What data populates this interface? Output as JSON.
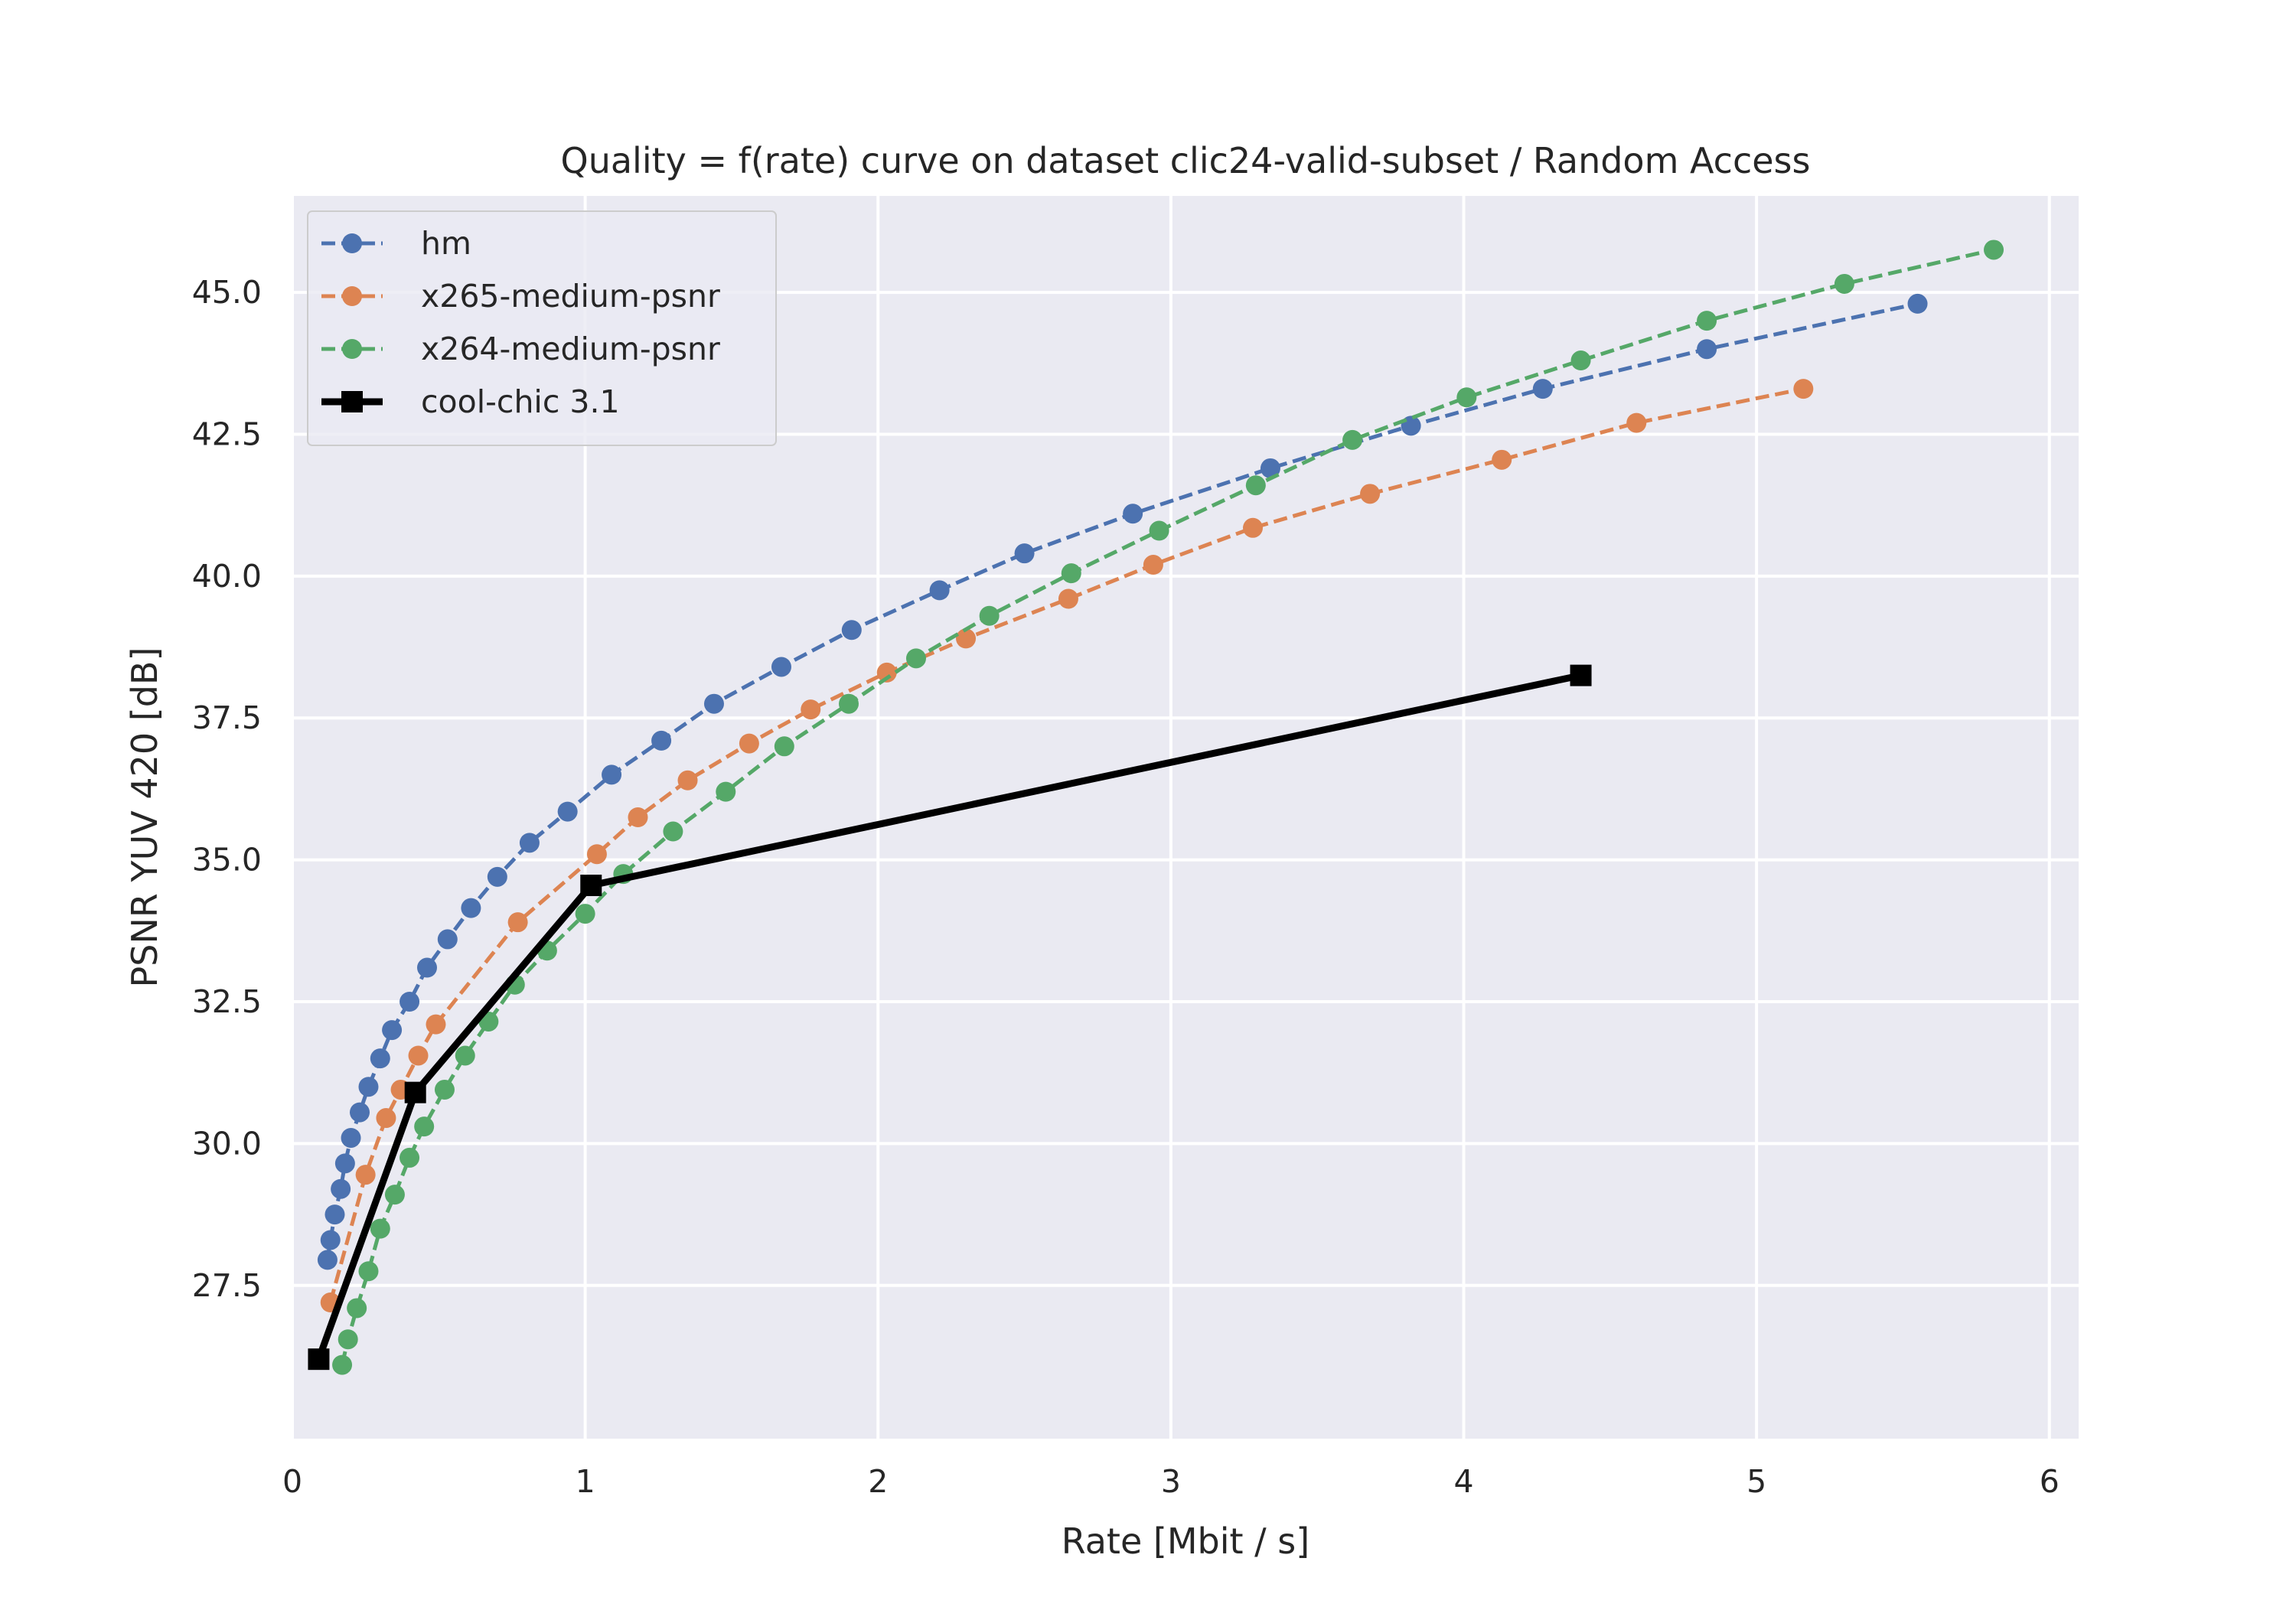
{
  "chart_data": {
    "type": "line",
    "title": "Quality = f(rate) curve on dataset clic24-valid-subset / Random Access",
    "xlabel": "Rate [Mbit / s]",
    "ylabel": "PSNR YUV 420 [dB]",
    "xlim": [
      0,
      6.1
    ],
    "ylim": [
      24.8,
      46.7
    ],
    "xticks": [
      0,
      1,
      2,
      3,
      4,
      5,
      6
    ],
    "xtick_labels": [
      "0",
      "1",
      "2",
      "3",
      "4",
      "5",
      "6"
    ],
    "yticks": [
      27.5,
      30.0,
      32.5,
      35.0,
      37.5,
      40.0,
      42.5,
      45.0
    ],
    "ytick_labels": [
      "27.5",
      "30.0",
      "32.5",
      "35.0",
      "37.5",
      "40.0",
      "42.5",
      "45.0"
    ],
    "grid": true,
    "legend_position": "top-left",
    "colors": {
      "background": "#eaeaf2",
      "grid": "#ffffff"
    },
    "series": [
      {
        "name": "hm",
        "color": "#4c72b0",
        "line_style": "dashed",
        "marker": "circle",
        "x": [
          0.12,
          0.13,
          0.145,
          0.165,
          0.18,
          0.2,
          0.23,
          0.26,
          0.3,
          0.34,
          0.4,
          0.46,
          0.53,
          0.61,
          0.7,
          0.81,
          0.94,
          1.09,
          1.26,
          1.44,
          1.67,
          1.91,
          2.21,
          2.5,
          2.87,
          3.34,
          3.82,
          4.27,
          4.83,
          5.55
        ],
        "y": [
          27.95,
          28.3,
          28.75,
          29.2,
          29.65,
          30.1,
          30.55,
          31.0,
          31.5,
          32.0,
          32.5,
          33.1,
          33.6,
          34.15,
          34.7,
          35.3,
          35.85,
          36.5,
          37.1,
          37.75,
          38.4,
          39.05,
          39.75,
          40.4,
          41.1,
          41.9,
          42.65,
          43.3,
          44.0,
          44.8
        ]
      },
      {
        "name": "x265-medium-psnr",
        "color": "#dd8452",
        "line_style": "dashed",
        "marker": "circle",
        "x": [
          0.13,
          0.25,
          0.32,
          0.37,
          0.43,
          0.49,
          0.77,
          1.04,
          1.18,
          1.35,
          1.56,
          1.77,
          2.03,
          2.3,
          2.65,
          2.94,
          3.28,
          3.68,
          4.13,
          4.59,
          5.16
        ],
        "y": [
          27.2,
          29.45,
          30.45,
          30.95,
          31.55,
          32.1,
          33.9,
          35.1,
          35.75,
          36.4,
          37.05,
          37.65,
          38.3,
          38.9,
          39.6,
          40.2,
          40.85,
          41.45,
          42.05,
          42.7,
          43.3
        ]
      },
      {
        "name": "x264-medium-psnr",
        "color": "#55a868",
        "line_style": "dashed",
        "marker": "circle",
        "x": [
          0.17,
          0.19,
          0.22,
          0.26,
          0.3,
          0.35,
          0.4,
          0.45,
          0.52,
          0.59,
          0.67,
          0.76,
          0.87,
          1.0,
          1.13,
          1.3,
          1.48,
          1.68,
          1.9,
          2.13,
          2.38,
          2.66,
          2.96,
          3.29,
          3.62,
          4.01,
          4.4,
          4.83,
          5.3,
          5.81
        ],
        "y": [
          26.1,
          26.55,
          27.1,
          27.75,
          28.5,
          29.1,
          29.75,
          30.3,
          30.95,
          31.55,
          32.15,
          32.8,
          33.4,
          34.05,
          34.75,
          35.5,
          36.2,
          37.0,
          37.75,
          38.55,
          39.3,
          40.05,
          40.8,
          41.6,
          42.4,
          43.15,
          43.8,
          44.5,
          45.15,
          45.75
        ]
      },
      {
        "name": "cool-chic 3.1",
        "color": "#000000",
        "line_style": "solid",
        "marker": "square",
        "x": [
          0.09,
          0.42,
          1.02,
          4.4
        ],
        "y": [
          26.2,
          30.9,
          34.55,
          38.25
        ]
      }
    ]
  }
}
